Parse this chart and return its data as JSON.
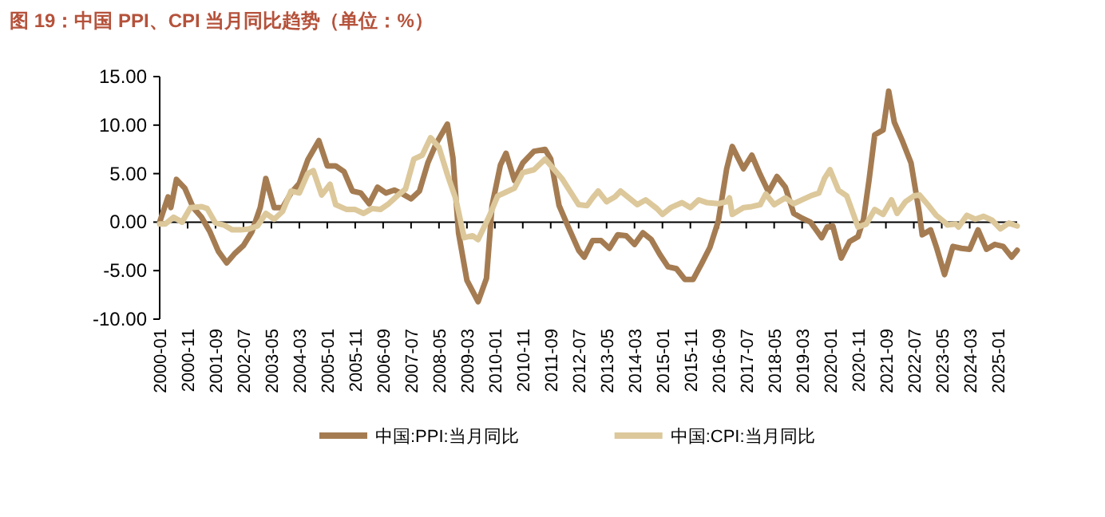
{
  "chart_data": {
    "type": "line",
    "title": "图 19：中国 PPI、CPI 当月同比趋势（单位：%）",
    "xlim": [
      "2000-01",
      "2025-08"
    ],
    "xticks": [
      "2000-01",
      "2000-11",
      "2001-09",
      "2002-07",
      "2003-05",
      "2004-03",
      "2005-01",
      "2005-11",
      "2006-09",
      "2007-07",
      "2008-05",
      "2009-03",
      "2010-01",
      "2010-11",
      "2011-09",
      "2012-07",
      "2013-05",
      "2014-03",
      "2015-01",
      "2015-11",
      "2016-09",
      "2017-07",
      "2018-05",
      "2019-03",
      "2020-01",
      "2020-11",
      "2021-09",
      "2022-07",
      "2023-05",
      "2024-03",
      "2025-01"
    ],
    "ylim": [
      -10,
      15
    ],
    "yticks": [
      {
        "value": -10,
        "label": "-10.00"
      },
      {
        "value": -5,
        "label": "-5.00"
      },
      {
        "value": 0,
        "label": "0.00"
      },
      {
        "value": 5,
        "label": "5.00"
      },
      {
        "value": 10,
        "label": "10.00"
      },
      {
        "value": 15,
        "label": "15.00"
      }
    ],
    "legend": "bottom",
    "marker": "none",
    "line_style": "solid",
    "series": [
      {
        "name": "中国:PPI:当月同比",
        "color": "#a57c52",
        "x": [
          "2000-01",
          "2000-04",
          "2000-05",
          "2000-07",
          "2000-10",
          "2001-01",
          "2001-04",
          "2001-07",
          "2001-10",
          "2002-01",
          "2002-04",
          "2002-07",
          "2002-10",
          "2003-01",
          "2003-03",
          "2003-06",
          "2003-09",
          "2003-12",
          "2004-03",
          "2004-06",
          "2004-10",
          "2005-01",
          "2005-04",
          "2005-07",
          "2005-10",
          "2006-01",
          "2006-04",
          "2006-07",
          "2006-10",
          "2007-01",
          "2007-04",
          "2007-07",
          "2007-10",
          "2008-01",
          "2008-04",
          "2008-08",
          "2008-10",
          "2008-12",
          "2009-03",
          "2009-07",
          "2009-10",
          "2009-12",
          "2010-03",
          "2010-05",
          "2010-08",
          "2010-11",
          "2011-03",
          "2011-07",
          "2011-09",
          "2011-12",
          "2012-03",
          "2012-07",
          "2012-09",
          "2012-12",
          "2013-03",
          "2013-06",
          "2013-09",
          "2013-12",
          "2014-03",
          "2014-06",
          "2014-09",
          "2014-12",
          "2015-03",
          "2015-06",
          "2015-09",
          "2015-12",
          "2016-03",
          "2016-06",
          "2016-09",
          "2016-12",
          "2017-02",
          "2017-06",
          "2017-09",
          "2017-12",
          "2018-03",
          "2018-06",
          "2018-09",
          "2018-12",
          "2019-03",
          "2019-06",
          "2019-10",
          "2019-12",
          "2020-02",
          "2020-05",
          "2020-08",
          "2020-11",
          "2021-01",
          "2021-03",
          "2021-05",
          "2021-08",
          "2021-10",
          "2021-12",
          "2022-03",
          "2022-06",
          "2022-09",
          "2022-10",
          "2023-01",
          "2023-03",
          "2023-06",
          "2023-09",
          "2023-12",
          "2024-03",
          "2024-06",
          "2024-09",
          "2024-12",
          "2025-03",
          "2025-06",
          "2025-08"
        ],
        "values": [
          0.0,
          2.6,
          1.5,
          4.4,
          3.5,
          1.5,
          0.5,
          -1.0,
          -3.0,
          -4.2,
          -3.2,
          -2.4,
          -1.0,
          1.5,
          4.5,
          1.5,
          1.5,
          3.0,
          4.0,
          6.4,
          8.4,
          5.8,
          5.8,
          5.2,
          3.2,
          3.0,
          1.9,
          3.6,
          3.0,
          3.3,
          2.9,
          2.4,
          3.2,
          6.1,
          8.1,
          10.1,
          6.6,
          -1.1,
          -6.0,
          -8.2,
          -5.8,
          1.7,
          5.9,
          7.1,
          4.3,
          6.1,
          7.3,
          7.5,
          6.5,
          1.7,
          -0.3,
          -2.9,
          -3.6,
          -1.9,
          -1.9,
          -2.7,
          -1.3,
          -1.4,
          -2.3,
          -1.1,
          -1.8,
          -3.3,
          -4.6,
          -4.8,
          -5.9,
          -5.9,
          -4.3,
          -2.6,
          0.1,
          5.5,
          7.8,
          5.5,
          6.9,
          4.9,
          3.1,
          4.7,
          3.6,
          0.9,
          0.4,
          0.0,
          -1.6,
          -0.5,
          -0.4,
          -3.7,
          -2.0,
          -1.5,
          0.3,
          4.4,
          9.0,
          9.5,
          13.5,
          10.3,
          8.3,
          6.1,
          0.9,
          -1.3,
          -0.8,
          -2.5,
          -5.4,
          -2.5,
          -2.7,
          -2.8,
          -0.8,
          -2.8,
          -2.3,
          -2.5,
          -3.6,
          -2.9
        ]
      },
      {
        "name": "中国:CPI:当月同比",
        "color": "#dcc89b",
        "x": [
          "2000-01",
          "2000-03",
          "2000-06",
          "2000-09",
          "2000-12",
          "2001-04",
          "2001-06",
          "2001-09",
          "2001-12",
          "2002-03",
          "2002-06",
          "2002-09",
          "2002-12",
          "2003-03",
          "2003-06",
          "2003-09",
          "2003-12",
          "2004-03",
          "2004-06",
          "2004-08",
          "2004-11",
          "2005-02",
          "2005-04",
          "2005-08",
          "2005-11",
          "2006-02",
          "2006-05",
          "2006-08",
          "2006-11",
          "2007-02",
          "2007-05",
          "2007-08",
          "2007-11",
          "2008-02",
          "2008-05",
          "2008-08",
          "2008-11",
          "2009-02",
          "2009-05",
          "2009-07",
          "2009-11",
          "2010-02",
          "2010-05",
          "2010-08",
          "2010-11",
          "2011-03",
          "2011-07",
          "2011-10",
          "2012-01",
          "2012-03",
          "2012-07",
          "2012-10",
          "2012-12",
          "2013-02",
          "2013-05",
          "2013-08",
          "2013-10",
          "2014-01",
          "2014-04",
          "2014-07",
          "2014-11",
          "2015-01",
          "2015-04",
          "2015-08",
          "2015-11",
          "2016-02",
          "2016-05",
          "2016-09",
          "2016-12",
          "2017-01",
          "2017-02",
          "2017-06",
          "2017-09",
          "2017-12",
          "2018-02",
          "2018-05",
          "2018-09",
          "2018-12",
          "2019-03",
          "2019-06",
          "2019-09",
          "2019-11",
          "2020-01",
          "2020-04",
          "2020-07",
          "2020-11",
          "2021-02",
          "2021-05",
          "2021-08",
          "2021-11",
          "2022-01",
          "2022-04",
          "2022-07",
          "2022-09",
          "2022-12",
          "2023-03",
          "2023-06",
          "2023-07",
          "2023-10",
          "2023-11",
          "2024-02",
          "2024-05",
          "2024-08",
          "2024-11",
          "2025-02",
          "2025-05",
          "2025-08"
        ],
        "values": [
          -0.2,
          -0.2,
          0.5,
          0.0,
          1.5,
          1.6,
          1.4,
          -0.1,
          -0.3,
          -0.8,
          -0.8,
          -0.7,
          -0.4,
          0.9,
          0.3,
          1.1,
          3.2,
          3.0,
          5.0,
          5.3,
          2.8,
          3.9,
          1.8,
          1.3,
          1.3,
          0.9,
          1.4,
          1.3,
          1.9,
          2.7,
          3.4,
          6.5,
          6.9,
          8.7,
          7.7,
          4.9,
          2.4,
          -1.6,
          -1.4,
          -1.8,
          0.6,
          2.7,
          3.1,
          3.5,
          5.1,
          5.4,
          6.5,
          5.5,
          4.5,
          3.6,
          1.8,
          1.7,
          2.5,
          3.2,
          2.1,
          2.6,
          3.2,
          2.5,
          1.8,
          2.3,
          1.4,
          0.8,
          1.5,
          2.0,
          1.5,
          2.3,
          2.0,
          1.9,
          2.1,
          2.5,
          0.8,
          1.5,
          1.6,
          1.8,
          2.9,
          1.8,
          2.5,
          1.9,
          2.3,
          2.7,
          3.0,
          4.5,
          5.4,
          3.3,
          2.7,
          -0.5,
          -0.2,
          1.3,
          0.8,
          2.3,
          0.9,
          2.1,
          2.7,
          2.8,
          1.8,
          0.7,
          0.0,
          -0.3,
          -0.2,
          -0.5,
          0.7,
          0.3,
          0.6,
          0.2,
          -0.7,
          -0.1,
          -0.4
        ]
      }
    ]
  }
}
